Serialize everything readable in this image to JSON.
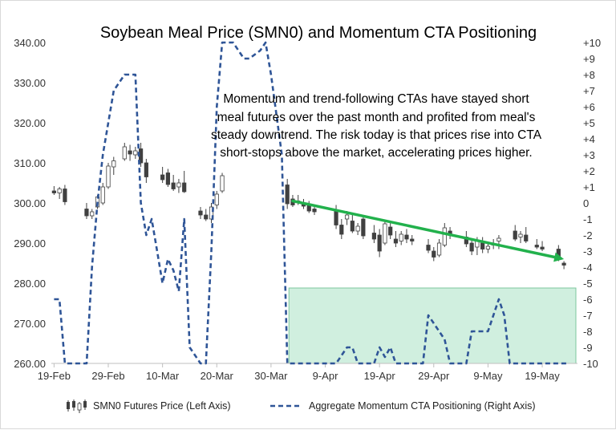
{
  "chart_data": {
    "type": "line",
    "title": "Soybean Meal Price (SMN0) and Momentum CTA Positioning",
    "annotation": [
      "Momentum and trend-following CTAs have stayed short",
      "meal futures over the past month and profited from meal's",
      "steady downtrend. The risk today is that prices rise into CTA",
      "short-stops above the market, accelerating prices higher."
    ],
    "x_ticks": [
      "19-Feb",
      "29-Feb",
      "10-Mar",
      "20-Mar",
      "30-Mar",
      "9-Apr",
      "19-Apr",
      "29-Apr",
      "9-May",
      "19-May"
    ],
    "left_axis": {
      "range": [
        260,
        340
      ],
      "ticks": [
        "260.00",
        "270.00",
        "280.00",
        "290.00",
        "300.00",
        "310.00",
        "320.00",
        "330.00",
        "340.00"
      ]
    },
    "right_axis": {
      "range": [
        -10,
        10
      ],
      "ticks": [
        "-10",
        "-9",
        "-8",
        "-7",
        "-6",
        "-5",
        "-4",
        "-3",
        "-2",
        "-1",
        "0",
        "+1",
        "+2",
        "+3",
        "+4",
        "+5",
        "+6",
        "+7",
        "+8",
        "+9",
        "+10"
      ]
    },
    "series": [
      {
        "name": "SMN0 Futures Price (Left Axis)",
        "type": "candlestick",
        "axis": "left",
        "color": "#404040",
        "points": [
          {
            "d": 0,
            "o": 303.0,
            "h": 304.2,
            "l": 302.0,
            "c": 302.5
          },
          {
            "d": 1,
            "o": 302.5,
            "h": 304.0,
            "l": 301.0,
            "c": 303.5
          },
          {
            "d": 2,
            "o": 303.5,
            "h": 304.5,
            "l": 299.5,
            "c": 300.3
          },
          {
            "d": 6,
            "o": 298.5,
            "h": 300.0,
            "l": 296.0,
            "c": 296.8
          },
          {
            "d": 7,
            "o": 296.8,
            "h": 298.5,
            "l": 296.0,
            "c": 297.8
          },
          {
            "d": 8,
            "o": 299.0,
            "h": 302.0,
            "l": 298.5,
            "c": 301.5
          },
          {
            "d": 9,
            "o": 300.0,
            "h": 305.0,
            "l": 299.5,
            "c": 304.0
          },
          {
            "d": 10,
            "o": 304.0,
            "h": 310.0,
            "l": 303.5,
            "c": 309.2
          },
          {
            "d": 11,
            "o": 309.0,
            "h": 311.5,
            "l": 307.0,
            "c": 310.5
          },
          {
            "d": 13,
            "o": 311.0,
            "h": 315.0,
            "l": 310.5,
            "c": 314.0
          },
          {
            "d": 14,
            "o": 313.0,
            "h": 314.5,
            "l": 310.5,
            "c": 312.2
          },
          {
            "d": 15,
            "o": 312.0,
            "h": 314.0,
            "l": 311.0,
            "c": 313.0
          },
          {
            "d": 16,
            "o": 313.5,
            "h": 315.0,
            "l": 309.0,
            "c": 310.0
          },
          {
            "d": 17,
            "o": 310.0,
            "h": 311.0,
            "l": 305.0,
            "c": 306.5
          },
          {
            "d": 20,
            "o": 307.0,
            "h": 309.0,
            "l": 305.0,
            "c": 305.8
          },
          {
            "d": 21,
            "o": 307.5,
            "h": 308.5,
            "l": 304.0,
            "c": 304.6
          },
          {
            "d": 22,
            "o": 305.0,
            "h": 307.0,
            "l": 303.0,
            "c": 303.5
          },
          {
            "d": 23,
            "o": 304.0,
            "h": 306.0,
            "l": 302.5,
            "c": 305.0
          },
          {
            "d": 24,
            "o": 305.0,
            "h": 308.0,
            "l": 302.5,
            "c": 302.8
          },
          {
            "d": 27,
            "o": 298.0,
            "h": 299.0,
            "l": 296.0,
            "c": 297.0
          },
          {
            "d": 28,
            "o": 297.0,
            "h": 298.5,
            "l": 295.5,
            "c": 296.0
          },
          {
            "d": 29,
            "o": 296.0,
            "h": 300.0,
            "l": 295.0,
            "c": 299.0
          },
          {
            "d": 30,
            "o": 299.5,
            "h": 303.0,
            "l": 298.5,
            "c": 302.2
          },
          {
            "d": 31,
            "o": 303.0,
            "h": 307.5,
            "l": 302.5,
            "c": 306.8
          },
          {
            "d": 43,
            "o": 304.5,
            "h": 306.0,
            "l": 298.5,
            "c": 299.8
          },
          {
            "d": 44,
            "o": 301.0,
            "h": 302.0,
            "l": 299.0,
            "c": 299.5
          },
          {
            "d": 45,
            "o": 300.5,
            "h": 302.0,
            "l": 299.5,
            "c": 300.2
          },
          {
            "d": 46,
            "o": 300.0,
            "h": 301.0,
            "l": 298.5,
            "c": 299.2
          },
          {
            "d": 47,
            "o": 299.5,
            "h": 300.5,
            "l": 297.5,
            "c": 298.0
          },
          {
            "d": 48,
            "o": 298.5,
            "h": 299.5,
            "l": 297.0,
            "c": 297.8
          },
          {
            "d": 52,
            "o": 298.0,
            "h": 299.5,
            "l": 293.5,
            "c": 294.5
          },
          {
            "d": 53,
            "o": 294.5,
            "h": 296.0,
            "l": 291.0,
            "c": 292.2
          },
          {
            "d": 54,
            "o": 296.0,
            "h": 298.0,
            "l": 294.5,
            "c": 297.0
          },
          {
            "d": 55,
            "o": 295.5,
            "h": 297.0,
            "l": 292.5,
            "c": 293.0
          },
          {
            "d": 56,
            "o": 293.0,
            "h": 295.0,
            "l": 292.0,
            "c": 294.2
          },
          {
            "d": 57,
            "o": 296.0,
            "h": 297.0,
            "l": 291.0,
            "c": 291.8
          },
          {
            "d": 59,
            "o": 292.5,
            "h": 294.5,
            "l": 290.0,
            "c": 291.0
          },
          {
            "d": 60,
            "o": 292.0,
            "h": 293.5,
            "l": 286.5,
            "c": 288.0
          },
          {
            "d": 61,
            "o": 290.0,
            "h": 295.5,
            "l": 289.5,
            "c": 294.8
          },
          {
            "d": 62,
            "o": 294.0,
            "h": 295.5,
            "l": 291.0,
            "c": 292.0
          },
          {
            "d": 63,
            "o": 291.0,
            "h": 293.0,
            "l": 289.0,
            "c": 290.0
          },
          {
            "d": 64,
            "o": 290.5,
            "h": 293.0,
            "l": 289.5,
            "c": 292.2
          },
          {
            "d": 65,
            "o": 292.0,
            "h": 293.5,
            "l": 290.0,
            "c": 291.0
          },
          {
            "d": 66,
            "o": 291.0,
            "h": 292.0,
            "l": 289.5,
            "c": 290.5
          },
          {
            "d": 69,
            "o": 289.5,
            "h": 291.0,
            "l": 287.5,
            "c": 288.2
          },
          {
            "d": 70,
            "o": 288.0,
            "h": 289.0,
            "l": 285.5,
            "c": 286.5
          },
          {
            "d": 71,
            "o": 287.0,
            "h": 291.0,
            "l": 286.5,
            "c": 290.0
          },
          {
            "d": 72,
            "o": 289.5,
            "h": 295.0,
            "l": 289.0,
            "c": 293.8
          },
          {
            "d": 73,
            "o": 293.0,
            "h": 294.0,
            "l": 291.0,
            "c": 292.0
          },
          {
            "d": 76,
            "o": 291.5,
            "h": 293.0,
            "l": 289.0,
            "c": 289.8
          },
          {
            "d": 77,
            "o": 290.0,
            "h": 291.0,
            "l": 287.0,
            "c": 288.0
          },
          {
            "d": 78,
            "o": 289.0,
            "h": 291.5,
            "l": 287.0,
            "c": 290.5
          },
          {
            "d": 79,
            "o": 290.0,
            "h": 291.5,
            "l": 287.5,
            "c": 288.5
          },
          {
            "d": 80,
            "o": 288.5,
            "h": 290.0,
            "l": 287.5,
            "c": 289.2
          },
          {
            "d": 81,
            "o": 289.5,
            "h": 291.0,
            "l": 288.5,
            "c": 289.8
          },
          {
            "d": 82,
            "o": 290.5,
            "h": 292.0,
            "l": 288.5,
            "c": 291.2
          },
          {
            "d": 85,
            "o": 293.0,
            "h": 294.5,
            "l": 290.5,
            "c": 291.0
          },
          {
            "d": 86,
            "o": 291.5,
            "h": 293.0,
            "l": 290.0,
            "c": 292.2
          },
          {
            "d": 87,
            "o": 292.0,
            "h": 294.0,
            "l": 290.0,
            "c": 290.5
          },
          {
            "d": 89,
            "o": 289.5,
            "h": 291.0,
            "l": 288.5,
            "c": 289.0
          },
          {
            "d": 90,
            "o": 289.0,
            "h": 290.5,
            "l": 288.0,
            "c": 288.5
          },
          {
            "d": 93,
            "o": 288.5,
            "h": 289.5,
            "l": 285.5,
            "c": 286.2
          },
          {
            "d": 94,
            "o": 285.0,
            "h": 285.5,
            "l": 283.5,
            "c": 284.5
          }
        ]
      },
      {
        "name": "Aggregate Momentum CTA Positioning (Right Axis)",
        "type": "line",
        "axis": "right",
        "style": "dashed",
        "color": "#2f5597",
        "x": [
          0,
          1,
          2,
          6,
          7,
          8,
          9,
          10,
          11,
          13,
          14,
          15,
          16,
          17,
          18,
          19,
          20,
          21,
          22,
          23,
          24,
          25,
          27,
          28,
          29,
          30,
          31,
          32,
          33,
          35,
          36,
          38,
          39,
          40,
          42,
          43,
          44,
          48,
          52,
          54,
          55,
          56,
          59,
          60,
          61,
          62,
          63,
          64,
          68,
          69,
          70,
          71,
          72,
          73,
          76,
          77,
          78,
          79,
          80,
          82,
          83,
          84,
          86,
          87,
          90,
          95
        ],
        "values": [
          -6,
          -6,
          -10,
          -10,
          -4,
          0,
          3,
          5,
          7,
          8,
          8,
          8,
          0,
          -2,
          -1,
          -3,
          -5,
          -3.5,
          -4.2,
          -5.5,
          -1,
          -9,
          -10,
          -10,
          -3,
          6,
          10,
          10,
          10,
          9,
          9,
          9.5,
          10,
          8,
          3,
          -10,
          -10,
          -10,
          -10,
          -9,
          -9,
          -10,
          -10,
          -9,
          -9.6,
          -9,
          -10,
          -10,
          -10,
          -7,
          -7.5,
          -8,
          -8.5,
          -10,
          -10,
          -8,
          -8,
          -8,
          -8,
          -6,
          -7,
          -10,
          -10,
          -10,
          -10,
          -10
        ]
      },
      {
        "name": "Downtrend",
        "type": "trend_arrow",
        "axis": "left",
        "color": "#22b14c",
        "from": [
          44,
          300.5
        ],
        "to": [
          94,
          286
        ]
      }
    ],
    "shaded_region": {
      "x_range": [
        43.3,
        96.2
      ],
      "y_range_right_axis": [
        -10,
        -5.3
      ],
      "fill": "#d0efdf",
      "stroke": "#7cc79e"
    },
    "x_range": [
      -0.5,
      96.5
    ],
    "x_tick_positions": [
      0,
      10,
      20,
      30,
      40,
      50,
      60,
      70,
      80,
      90
    ]
  }
}
